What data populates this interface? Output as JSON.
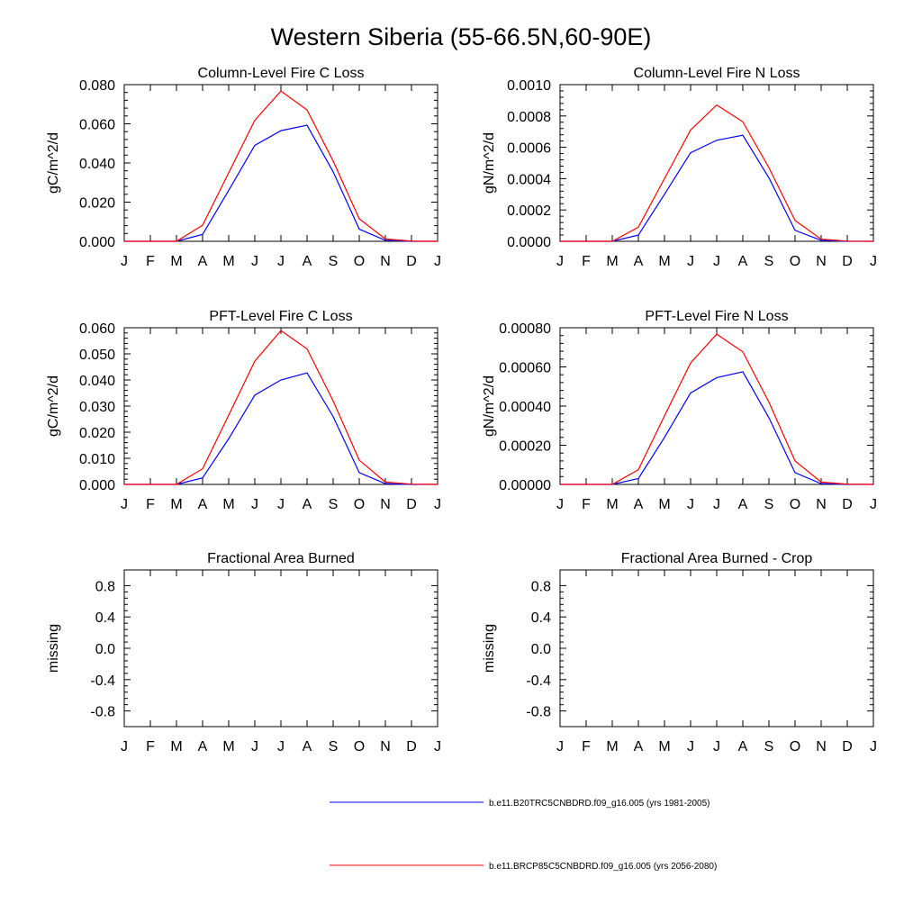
{
  "figure_title": "Western Siberia (55-66.5N,60-90E)",
  "colors": {
    "series1": "#0000ff",
    "series2": "#ff0000",
    "axis": "#000000"
  },
  "legend": [
    {
      "label": "b.e11.B20TRC5CNBDRD.f09_g16.005 (yrs 1981-2005)",
      "color": "#0000ff"
    },
    {
      "label": "b.e11.BRCP85C5CNBDRD.f09_g16.005 (yrs 2056-2080)",
      "color": "#ff0000"
    }
  ],
  "chart_data": [
    {
      "type": "line",
      "title": "Column-Level Fire C Loss",
      "ylabel": "gC/m^2/d",
      "xlabel": "",
      "categories": [
        "J",
        "F",
        "M",
        "A",
        "M",
        "J",
        "J",
        "A",
        "S",
        "O",
        "N",
        "D",
        "J"
      ],
      "ylim": [
        0,
        0.08
      ],
      "yticks": [
        0,
        0.02,
        0.04,
        0.06,
        0.08
      ],
      "ytick_labels": [
        "0.000",
        "0.020",
        "0.040",
        "0.060",
        "0.080"
      ],
      "series": [
        {
          "name": "b.e11.B20TRC5CNBDRD.f09_g16.005 (yrs 1981-2005)",
          "color": "#0000ff",
          "values": [
            0,
            0,
            0,
            0.0035,
            0.026,
            0.049,
            0.0565,
            0.0593,
            0.0355,
            0.0062,
            0.0005,
            0,
            0
          ]
        },
        {
          "name": "b.e11.BRCP85C5CNBDRD.f09_g16.005 (yrs 2056-2080)",
          "color": "#ff0000",
          "values": [
            0,
            0,
            0,
            0.0082,
            0.035,
            0.0618,
            0.0767,
            0.0671,
            0.041,
            0.0115,
            0.0012,
            0.0001,
            0
          ]
        }
      ]
    },
    {
      "type": "line",
      "title": "Column-Level Fire N Loss",
      "ylabel": "gN/m^2/d",
      "xlabel": "",
      "categories": [
        "J",
        "F",
        "M",
        "A",
        "M",
        "J",
        "J",
        "A",
        "S",
        "O",
        "N",
        "D",
        "J"
      ],
      "ylim": [
        0,
        0.001
      ],
      "yticks": [
        0,
        0.0002,
        0.0004,
        0.0006,
        0.0008,
        0.001
      ],
      "ytick_labels": [
        "0.0000",
        "0.0002",
        "0.0004",
        "0.0006",
        "0.0008",
        "0.0010"
      ],
      "series": [
        {
          "name": "b.e11.B20TRC5CNBDRD.f09_g16.005 (yrs 1981-2005)",
          "color": "#0000ff",
          "values": [
            0,
            0,
            0,
            4e-05,
            0.0003,
            0.000565,
            0.000645,
            0.000677,
            0.000405,
            7e-05,
            6e-06,
            0,
            0
          ]
        },
        {
          "name": "b.e11.BRCP85C5CNBDRD.f09_g16.005 (yrs 2056-2080)",
          "color": "#ff0000",
          "values": [
            0,
            0,
            0,
            9e-05,
            0.0004,
            0.00071,
            0.00087,
            0.000763,
            0.00047,
            0.000133,
            1.4e-05,
            1e-06,
            0
          ]
        }
      ]
    },
    {
      "type": "line",
      "title": "PFT-Level Fire C Loss",
      "ylabel": "gC/m^2/d",
      "xlabel": "",
      "categories": [
        "J",
        "F",
        "M",
        "A",
        "M",
        "J",
        "J",
        "A",
        "S",
        "O",
        "N",
        "D",
        "J"
      ],
      "ylim": [
        0,
        0.06
      ],
      "yticks": [
        0,
        0.01,
        0.02,
        0.03,
        0.04,
        0.05,
        0.06
      ],
      "ytick_labels": [
        "0.000",
        "0.010",
        "0.020",
        "0.030",
        "0.040",
        "0.050",
        "0.060"
      ],
      "series": [
        {
          "name": "b.e11.B20TRC5CNBDRD.f09_g16.005 (yrs 1981-2005)",
          "color": "#0000ff",
          "values": [
            0,
            0,
            0,
            0.0025,
            0.0175,
            0.0342,
            0.04,
            0.0427,
            0.026,
            0.0045,
            0.0003,
            0,
            0
          ]
        },
        {
          "name": "b.e11.BRCP85C5CNBDRD.f09_g16.005 (yrs 2056-2080)",
          "color": "#ff0000",
          "values": [
            0,
            0,
            0,
            0.006,
            0.0265,
            0.0472,
            0.0589,
            0.0519,
            0.032,
            0.0093,
            0.0009,
            0.0001,
            0
          ]
        }
      ]
    },
    {
      "type": "line",
      "title": "PFT-Level Fire N Loss",
      "ylabel": "gN/m^2/d",
      "xlabel": "",
      "categories": [
        "J",
        "F",
        "M",
        "A",
        "M",
        "J",
        "J",
        "A",
        "S",
        "O",
        "N",
        "D",
        "J"
      ],
      "ylim": [
        0,
        0.0008
      ],
      "yticks": [
        0,
        0.0002,
        0.0004,
        0.0006,
        0.0008
      ],
      "ytick_labels": [
        "0.00000",
        "0.00020",
        "0.00040",
        "0.00060",
        "0.00080"
      ],
      "series": [
        {
          "name": "b.e11.B20TRC5CNBDRD.f09_g16.005 (yrs 1981-2005)",
          "color": "#0000ff",
          "values": [
            0,
            0,
            0,
            3e-05,
            0.00024,
            0.000467,
            0.000545,
            0.000575,
            0.00034,
            6e-05,
            4e-06,
            0,
            0
          ]
        },
        {
          "name": "b.e11.BRCP85C5CNBDRD.f09_g16.005 (yrs 2056-2080)",
          "color": "#ff0000",
          "values": [
            0,
            0,
            0,
            7.5e-05,
            0.00035,
            0.00062,
            0.000767,
            0.000677,
            0.00042,
            0.00012,
            1.2e-05,
            1e-06,
            0
          ]
        }
      ]
    },
    {
      "type": "line",
      "title": "Fractional Area Burned",
      "ylabel": "missing",
      "xlabel": "",
      "categories": [
        "J",
        "F",
        "M",
        "A",
        "M",
        "J",
        "J",
        "A",
        "S",
        "O",
        "N",
        "D",
        "J"
      ],
      "ylim": [
        -1,
        1
      ],
      "yticks": [
        -0.8,
        -0.4,
        0,
        0.4,
        0.8
      ],
      "ytick_labels": [
        "-0.8",
        "-0.4",
        "0.0",
        "0.4",
        "0.8"
      ],
      "series": []
    },
    {
      "type": "line",
      "title": "Fractional Area Burned - Crop",
      "ylabel": "missing",
      "xlabel": "",
      "categories": [
        "J",
        "F",
        "M",
        "A",
        "M",
        "J",
        "J",
        "A",
        "S",
        "O",
        "N",
        "D",
        "J"
      ],
      "ylim": [
        -1,
        1
      ],
      "yticks": [
        -0.8,
        -0.4,
        0,
        0.4,
        0.8
      ],
      "ytick_labels": [
        "-0.8",
        "-0.4",
        "0.0",
        "0.4",
        "0.8"
      ],
      "series": []
    }
  ]
}
